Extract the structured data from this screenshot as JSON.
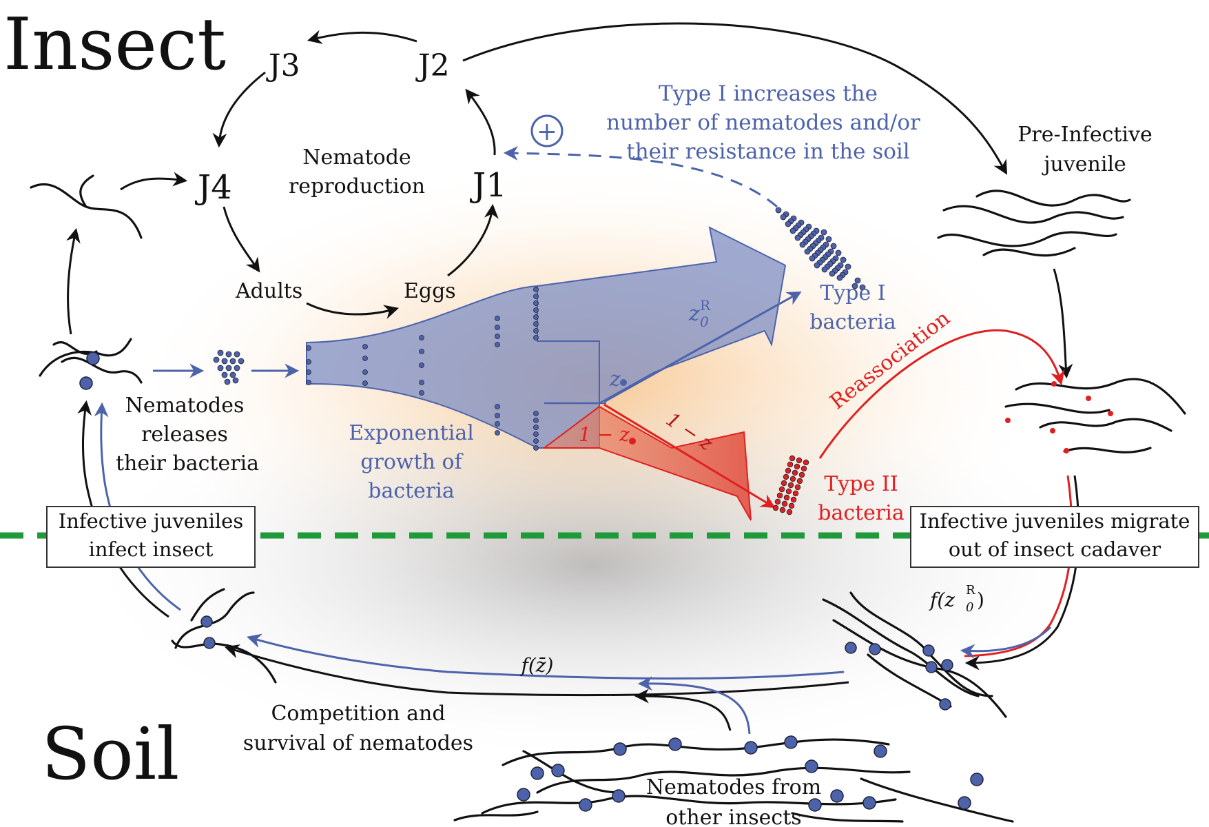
{
  "regions": {
    "insect": "Insect",
    "soil": "Soil"
  },
  "cycle": {
    "title_line1": "Nematode",
    "title_line2": "reproduction",
    "stages": {
      "j1": "J1",
      "j2": "J2",
      "j3": "J3",
      "j4": "J4",
      "adults": "Adults",
      "eggs": "Eggs"
    }
  },
  "annotations": {
    "type1_effect": [
      "Type I increases the",
      "number of nematodes and/or",
      "their resistance in the soil"
    ],
    "plus_symbol": "+",
    "pre_infective": [
      "Pre-Infective",
      "juvenile"
    ],
    "release": [
      "Nematodes",
      "releases",
      "their bacteria"
    ],
    "growth": [
      "Exponential",
      "growth of",
      "bacteria"
    ],
    "type1_bacteria": [
      "Type I",
      "bacteria"
    ],
    "type2_bacteria": [
      "Type II",
      "bacteria"
    ],
    "reassociation": "Reassociation",
    "infect_box": [
      "Infective juveniles",
      "infect insect"
    ],
    "migrate_box": [
      "Infective juveniles migrate",
      "out of insect cadaver"
    ],
    "competition": [
      "Competition and",
      "survival of nematodes"
    ],
    "other_insects": [
      "Nematodes from",
      "other insects"
    ]
  },
  "math": {
    "z0R_label": "z",
    "z0R_sub": "0",
    "z0R_sup": "R",
    "z_label": "z",
    "one_minus_z": "1 − z",
    "one_minus_z0R": "1 − z",
    "f_z0R": "f(z",
    "f_z0R_close": ")",
    "f_zbar": "f(z̄)"
  },
  "colors": {
    "blue": "#4c63ab",
    "red": "#e02020",
    "green_divider": "#1f9a3a",
    "black": "#111111",
    "glow": "#f6b36b"
  }
}
